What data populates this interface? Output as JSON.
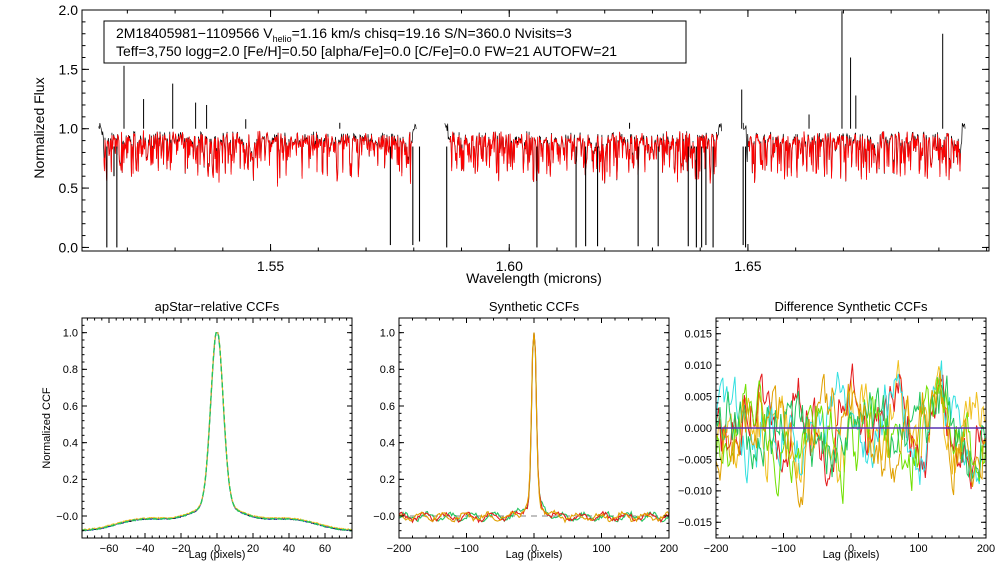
{
  "colors": {
    "observed": "#000000",
    "model": "#ff0000",
    "black": "#000000",
    "blue": "#1f3fbf",
    "green": "#22c55e",
    "yellow": "#f0c020",
    "red": "#e41a1c",
    "cyan": "#33e0e0",
    "lime": "#70e000",
    "orange": "#e0a000",
    "zero_line": "#5a32b4",
    "dashed": "#808080"
  },
  "chart_data": [
    {
      "id": "spectrum",
      "type": "line",
      "title": "",
      "xlabel": "Wavelength (microns)",
      "ylabel": "Normalized Flux",
      "xlim": [
        1.5105,
        1.7005
      ],
      "ylim": [
        -0.03,
        2.0
      ],
      "xticks": [
        1.55,
        1.6,
        1.65
      ],
      "xtick_labels": [
        "1.55",
        "1.60",
        "1.65"
      ],
      "yticks": [
        0.0,
        0.5,
        1.0,
        1.5,
        2.0
      ],
      "ytick_labels": [
        "0.0",
        "0.5",
        "1.0",
        "1.5",
        "2.0"
      ],
      "info_line1_prefix": "2M18405981−1109566  V",
      "info_line1_sub": "helio",
      "info_line1_suffix": "=1.16 km/s  chisq=19.16  S/N=360.0  Nvisits=3",
      "info_line2": "Teff=3,750 logg=2.0 [Fe/H]=0.50 [alpha/Fe]=0.0 [C/Fe]=0.0 FW=21 AUTOFW=21",
      "chips": [
        [
          1.514,
          1.5805
        ],
        [
          1.5865,
          1.6445
        ],
        [
          1.649,
          1.6955
        ]
      ],
      "continuum": 0.93,
      "spikes": [
        {
          "x": 1.5193,
          "y": 1.53
        },
        {
          "x": 1.5234,
          "y": 1.25
        },
        {
          "x": 1.5295,
          "y": 1.38
        },
        {
          "x": 1.5343,
          "y": 1.22
        },
        {
          "x": 1.5366,
          "y": 1.2
        },
        {
          "x": 1.5448,
          "y": 1.08
        },
        {
          "x": 1.5645,
          "y": 1.05
        },
        {
          "x": 1.6252,
          "y": 1.05
        },
        {
          "x": 1.6487,
          "y": 1.33
        },
        {
          "x": 1.6715,
          "y": 1.6
        },
        {
          "x": 1.6697,
          "y": 1.99
        },
        {
          "x": 1.6726,
          "y": 1.28
        },
        {
          "x": 1.6908,
          "y": 1.8
        },
        {
          "x": 1.6628,
          "y": 1.12
        }
      ],
      "dips": [
        {
          "x": 1.5157,
          "y": 0.0
        },
        {
          "x": 1.5172,
          "y": 0.6
        },
        {
          "x": 1.5178,
          "y": 0.0
        },
        {
          "x": 1.5751,
          "y": 0.02
        },
        {
          "x": 1.5798,
          "y": 0.02
        },
        {
          "x": 1.5812,
          "y": 0.05
        },
        {
          "x": 1.5869,
          "y": 0.0
        },
        {
          "x": 1.6058,
          "y": 0.0
        },
        {
          "x": 1.614,
          "y": 0.0
        },
        {
          "x": 1.616,
          "y": 0.01
        },
        {
          "x": 1.6185,
          "y": 0.01
        },
        {
          "x": 1.627,
          "y": 0.01
        },
        {
          "x": 1.6312,
          "y": 0.01
        },
        {
          "x": 1.6375,
          "y": 0.01
        },
        {
          "x": 1.6392,
          "y": 0.0
        },
        {
          "x": 1.6403,
          "y": 0.0
        },
        {
          "x": 1.6412,
          "y": 0.02
        },
        {
          "x": 1.6427,
          "y": 0.0
        },
        {
          "x": 1.649,
          "y": 0.02
        },
        {
          "x": 1.6495,
          "y": 0.0
        }
      ]
    },
    {
      "id": "apstar_ccf",
      "type": "line",
      "title": "apStar−relative CCFs",
      "xlabel": "Lag (pixels)",
      "ylabel": "Normalized CCF",
      "xlim": [
        -75,
        75
      ],
      "ylim": [
        -0.12,
        1.08
      ],
      "xticks": [
        -60,
        -40,
        -20,
        0,
        20,
        40,
        60
      ],
      "xtick_labels": [
        "−60",
        "−40",
        "−20",
        "0",
        "20",
        "40",
        "60"
      ],
      "yticks": [
        0.0,
        0.2,
        0.4,
        0.6,
        0.8,
        1.0
      ],
      "ytick_labels": [
        "−0.0",
        "0.2",
        "0.4",
        "0.6",
        "0.8",
        "1.0"
      ],
      "peak": 1.0,
      "series": [
        "black",
        "blue",
        "yellow",
        "green"
      ]
    },
    {
      "id": "synthetic_ccf",
      "type": "line",
      "title": "Synthetic CCFs",
      "xlabel": "Lag (pixels)",
      "ylabel": "",
      "xlim": [
        -200,
        200
      ],
      "ylim": [
        -0.12,
        1.08
      ],
      "xticks": [
        -200,
        -100,
        0,
        100,
        200
      ],
      "xtick_labels": [
        "−200",
        "−100",
        "0",
        "100",
        "200"
      ],
      "yticks": [
        0.0,
        0.2,
        0.4,
        0.6,
        0.8,
        1.0
      ],
      "ytick_labels": [
        "−0.0",
        "0.2",
        "0.4",
        "0.6",
        "0.8",
        "1.0"
      ],
      "peak": 1.0,
      "zero_line": 0.0,
      "series": [
        "green",
        "red",
        "orange"
      ]
    },
    {
      "id": "diff_ccf",
      "type": "line",
      "title": "Difference Synthetic CCFs",
      "xlabel": "Lag (pixels)",
      "ylabel": "",
      "xlim": [
        -200,
        200
      ],
      "ylim": [
        -0.0175,
        0.0175
      ],
      "xticks": [
        -200,
        -100,
        0,
        100,
        200
      ],
      "xtick_labels": [
        "−200",
        "−100",
        "0",
        "100",
        "200"
      ],
      "yticks": [
        -0.015,
        -0.01,
        -0.005,
        0.0,
        0.005,
        0.01,
        0.015
      ],
      "ytick_labels": [
        "−0.015",
        "−0.010",
        "−0.005",
        "0.000",
        "0.005",
        "0.010",
        "0.015"
      ],
      "amplitude": 0.0155,
      "zero_line": 0.0,
      "series": [
        "yellow",
        "red",
        "cyan",
        "lime",
        "green",
        "orange"
      ]
    }
  ]
}
